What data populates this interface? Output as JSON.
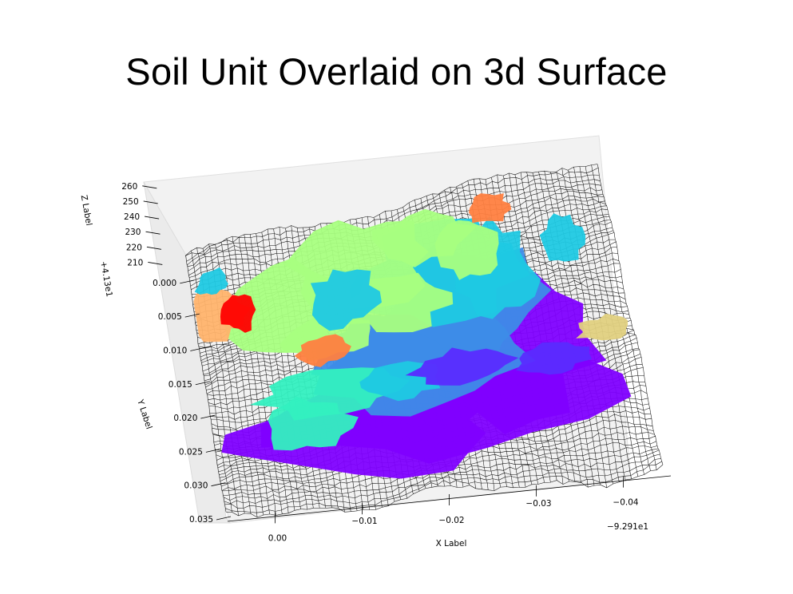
{
  "title": "Soil Unit Overlaid on 3d Surface",
  "chart_data": {
    "type": "surface",
    "title": "Soil Unit Overlaid on 3d Surface",
    "view": "3d, viewed from above",
    "surface": "black wireframe mesh with soil units as colored patches",
    "colormap": "rainbow",
    "grid": true,
    "xlabel": "X Label",
    "ylabel": "Y Label",
    "zlabel": "Z Label",
    "x_ticks": [
      "0.00",
      "−0.01",
      "−0.02",
      "−0.03",
      "−0.04"
    ],
    "x_offset": "−9.291e1",
    "y_ticks": [
      "0.000",
      "0.005",
      "0.010",
      "0.015",
      "0.020",
      "0.025",
      "0.030",
      "0.035"
    ],
    "y_offset": "+4.13e1",
    "z_ticks": [
      "210",
      "220",
      "230",
      "240",
      "250",
      "260"
    ],
    "xlim": [
      0.005,
      -0.045
    ],
    "ylim": [
      -0.004,
      0.035
    ],
    "zlim": [
      205,
      262
    ],
    "soil_unit_colors": [
      "#7f00ff",
      "#5a2bff",
      "#3d8ce8",
      "#1fc9e3",
      "#33f0c0",
      "#a8ff80",
      "#ffb36b",
      "#ff7f40",
      "#ff0000",
      "#e0d080"
    ]
  }
}
